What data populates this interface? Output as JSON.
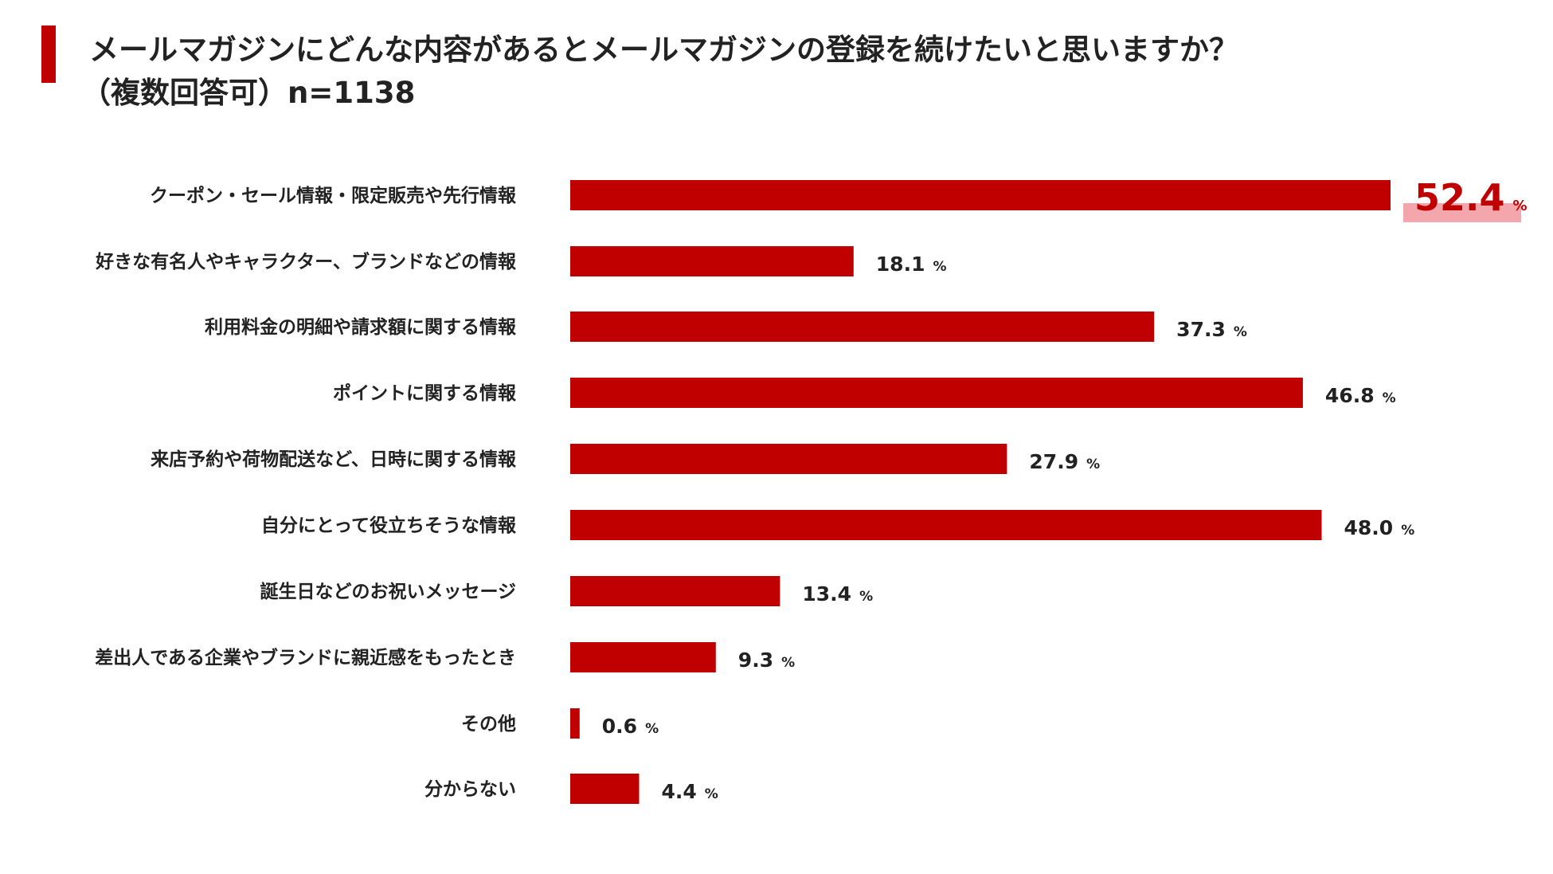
{
  "header": {
    "title_line1": "メールマガジンにどんな内容があるとメールマガジンの登録を続けたいと思いますか？",
    "title_line2": "（複数回答可）n=1138"
  },
  "colors": {
    "accent": "#c00000",
    "bar": "#c00000",
    "highlight_band": "#f4a6ad",
    "text": "#222222"
  },
  "chart_data": {
    "type": "bar",
    "orientation": "horizontal",
    "categories": [
      "クーポン・セール情報・限定販売や先行情報",
      "好きな有名人やキャラクター、ブランドなどの情報",
      "利用料金の明細や請求額に関する情報",
      "ポイントに関する情報",
      "来店予約や荷物配送など、日時に関する情報",
      "自分にとって役立ちそうな情報",
      "誕生日などのお祝いメッセージ",
      "差出人である企業やブランドに親近感をもったとき",
      "その他",
      "分からない"
    ],
    "values": [
      52.4,
      18.1,
      37.3,
      46.8,
      27.9,
      48.0,
      13.4,
      9.3,
      0.6,
      4.4
    ],
    "value_labels": [
      "52.4",
      "18.1",
      "37.3",
      "46.8",
      "27.9",
      "48.0",
      "13.4",
      "9.3",
      "0.6",
      "4.4"
    ],
    "unit": "%",
    "highlight_index": 0,
    "xlim": [
      0,
      52.4
    ],
    "grid": false,
    "legend": "none"
  }
}
